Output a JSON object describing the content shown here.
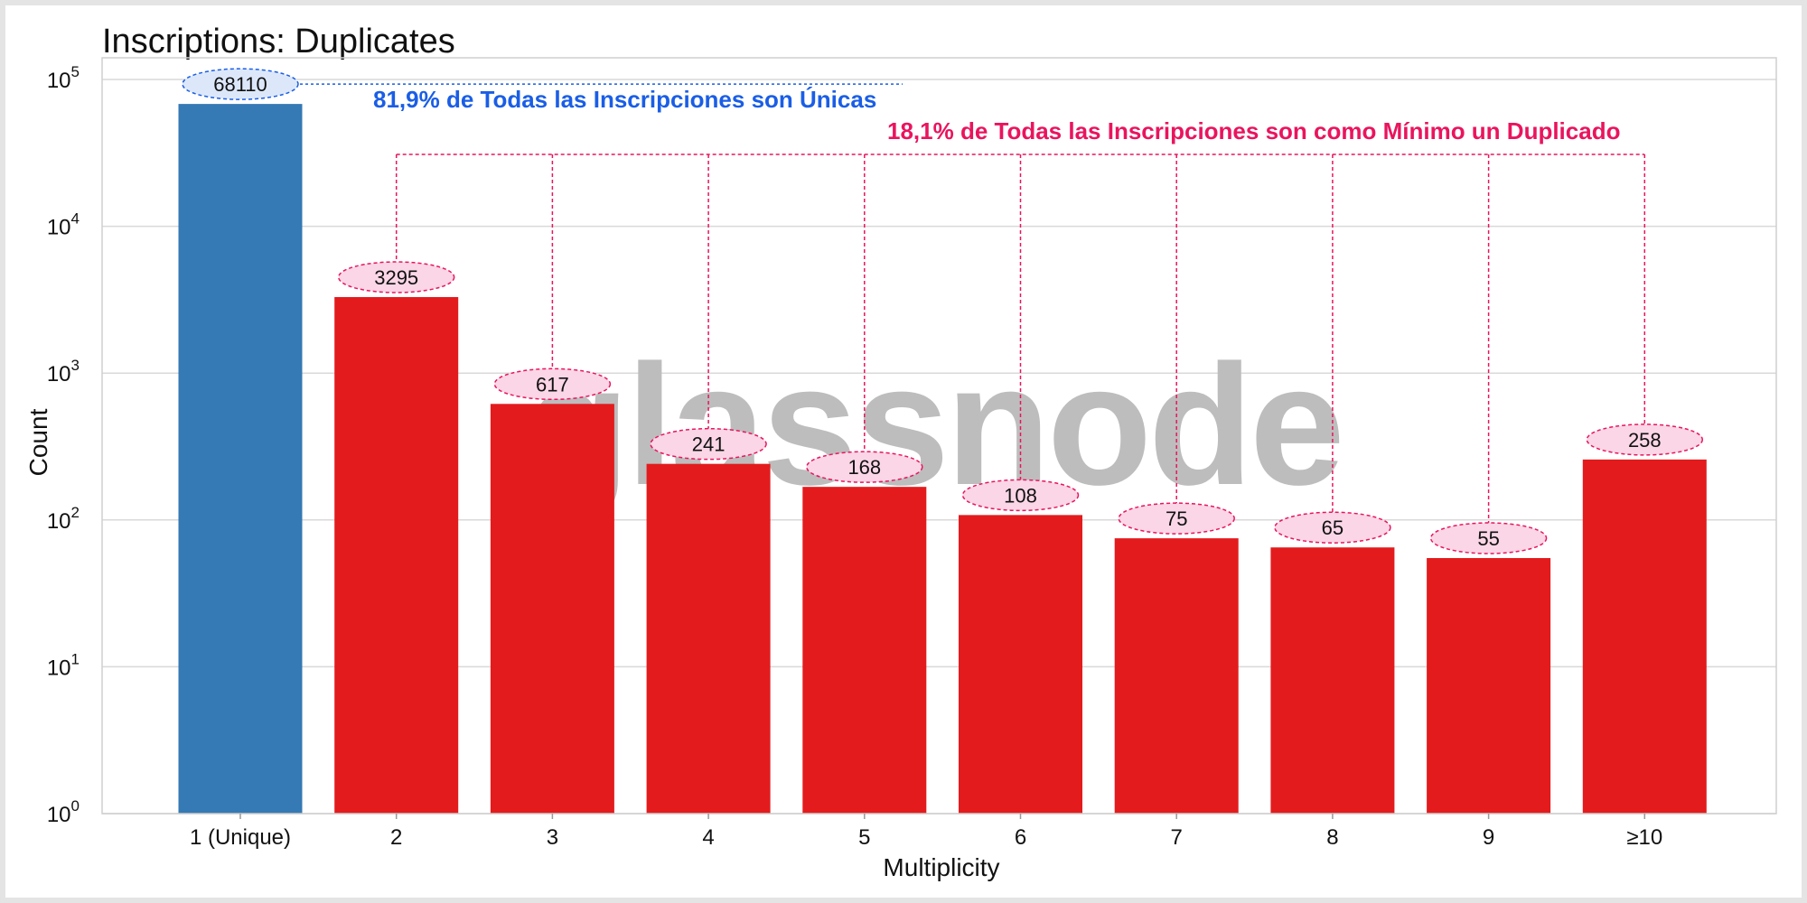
{
  "chart_data": {
    "type": "bar",
    "title": "Inscriptions: Duplicates",
    "xlabel": "Multiplicity",
    "ylabel": "Count",
    "yscale": "log",
    "ylim": [
      1,
      100000
    ],
    "y_ticks": [
      {
        "base": "10",
        "exp": "0"
      },
      {
        "base": "10",
        "exp": "1"
      },
      {
        "base": "10",
        "exp": "2"
      },
      {
        "base": "10",
        "exp": "3"
      },
      {
        "base": "10",
        "exp": "4"
      },
      {
        "base": "10",
        "exp": "5"
      }
    ],
    "grid": true,
    "categories": [
      "1 (Unique)",
      "2",
      "3",
      "4",
      "5",
      "6",
      "7",
      "8",
      "9",
      "≥10"
    ],
    "values": [
      68110,
      3295,
      617,
      241,
      168,
      108,
      75,
      65,
      55,
      258
    ],
    "data_labels": [
      "68110",
      "3295",
      "617",
      "241",
      "168",
      "108",
      "75",
      "65",
      "55",
      "258"
    ],
    "bar_colors": [
      "#3579b5",
      "#e31b1d",
      "#e31b1d",
      "#e31b1d",
      "#e31b1d",
      "#e31b1d",
      "#e31b1d",
      "#e31b1d",
      "#e31b1d",
      "#e31b1d"
    ],
    "annotations": {
      "unique": {
        "text": "81,9% de Todas las Inscripciones son Únicas",
        "color": "#1a5ee6",
        "bubble_fill": "#dce8fa"
      },
      "duplicates": {
        "text": "18,1% de Todas las Inscripciones son como Mínimo un Duplicado",
        "color": "#ea145e",
        "bubble_fill": "#fad6e6"
      }
    },
    "watermark": {
      "text": "glassnode",
      "color": "#bdbdbd"
    }
  }
}
